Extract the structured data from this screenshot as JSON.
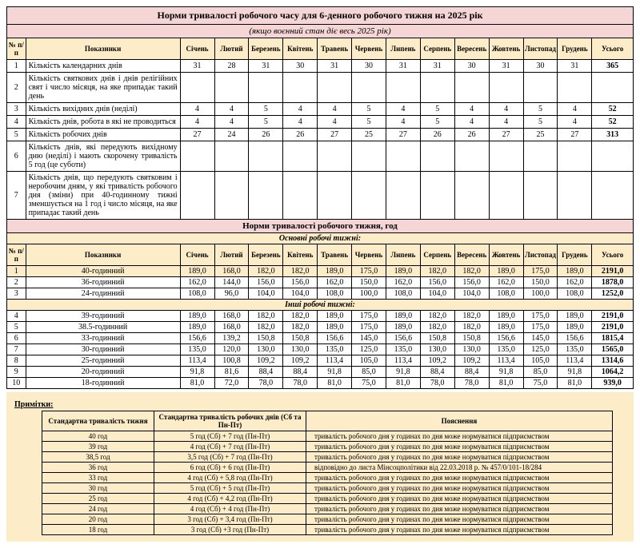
{
  "title": "Норми тривалості робочого часу для 6-денного робочого тижня на 2025 рік",
  "subtitle": "(якщо воєнний стан діє весь 2025 рік)",
  "headers": {
    "num": "№ п/п",
    "ind": "Показники",
    "months": [
      "Січень",
      "Лютий",
      "Березень",
      "Квітень",
      "Травень",
      "Червень",
      "Липень",
      "Серпень",
      "Вересень",
      "Жовтень",
      "Листопад",
      "Грудень"
    ],
    "total": "Усього"
  },
  "rows1": [
    {
      "n": "1",
      "label": "Кількість календарних днів",
      "v": [
        "31",
        "28",
        "31",
        "30",
        "31",
        "30",
        "31",
        "31",
        "30",
        "31",
        "30",
        "31"
      ],
      "t": "365"
    },
    {
      "n": "2",
      "label": "Кількість святкових днів і днів релігійних свят і число місяця, на яке припадає такий день",
      "v": [
        "",
        "",
        "",
        "",
        "",
        "",
        "",
        "",
        "",
        "",
        "",
        ""
      ],
      "t": ""
    },
    {
      "n": "3",
      "label": "Кількість вихідних днів (неділі)",
      "v": [
        "4",
        "4",
        "5",
        "4",
        "4",
        "5",
        "4",
        "5",
        "4",
        "4",
        "5",
        "4"
      ],
      "t": "52"
    },
    {
      "n": "4",
      "label": "Кількість днів, робота в які не проводиться",
      "v": [
        "4",
        "4",
        "5",
        "4",
        "4",
        "5",
        "4",
        "5",
        "4",
        "4",
        "5",
        "4"
      ],
      "t": "52"
    },
    {
      "n": "5",
      "label": "Кількість робочих днів",
      "v": [
        "27",
        "24",
        "26",
        "26",
        "27",
        "25",
        "27",
        "26",
        "26",
        "27",
        "25",
        "27"
      ],
      "t": "313"
    },
    {
      "n": "6",
      "label": "Кількість днів, які передують вихідному дню (неділі) і мають скорочену тривалість 5 год (це суботи)",
      "v": [
        "",
        "",
        "",
        "",
        "",
        "",
        "",
        "",
        "",
        "",
        "",
        ""
      ],
      "t": ""
    },
    {
      "n": "7",
      "label": "Кількість днів, що передують святковим і неробочим дням, у які тривалість робочого дня (зміни) при 40-годинному тижні зменшується на 1 год і число місяця, на яке припадає такий день",
      "v": [
        "",
        "",
        "",
        "",
        "",
        "",
        "",
        "",
        "",
        "",
        "",
        ""
      ],
      "t": ""
    }
  ],
  "section2_title": "Норми тривалості робочого тижня, год",
  "sub_a": "Основні робочі тижні:",
  "sub_b": "Інші робочі тижні:",
  "rows2a": [
    {
      "n": "1",
      "label": "40-годинний",
      "v": [
        "189,0",
        "168,0",
        "182,0",
        "182,0",
        "189,0",
        "175,0",
        "189,0",
        "182,0",
        "182,0",
        "189,0",
        "175,0",
        "189,0"
      ],
      "t": "2191,0",
      "hl": true
    },
    {
      "n": "2",
      "label": "36-годинний",
      "v": [
        "162,0",
        "144,0",
        "156,0",
        "156,0",
        "162,0",
        "150,0",
        "162,0",
        "156,0",
        "156,0",
        "162,0",
        "150,0",
        "162,0"
      ],
      "t": "1878,0"
    },
    {
      "n": "3",
      "label": "24-годинний",
      "v": [
        "108,0",
        "96,0",
        "104,0",
        "104,0",
        "108,0",
        "100,0",
        "108,0",
        "104,0",
        "104,0",
        "108,0",
        "100,0",
        "108,0"
      ],
      "t": "1252,0"
    }
  ],
  "rows2b": [
    {
      "n": "4",
      "label": "39-годинний",
      "v": [
        "189,0",
        "168,0",
        "182,0",
        "182,0",
        "189,0",
        "175,0",
        "189,0",
        "182,0",
        "182,0",
        "189,0",
        "175,0",
        "189,0"
      ],
      "t": "2191,0"
    },
    {
      "n": "5",
      "label": "38.5-годинний",
      "v": [
        "189,0",
        "168,0",
        "182,0",
        "182,0",
        "189,0",
        "175,0",
        "189,0",
        "182,0",
        "182,0",
        "189,0",
        "175,0",
        "189,0"
      ],
      "t": "2191,0"
    },
    {
      "n": "6",
      "label": "33-годинний",
      "v": [
        "156,6",
        "139,2",
        "150,8",
        "150,8",
        "156,6",
        "145,0",
        "156,6",
        "150,8",
        "150,8",
        "156,6",
        "145,0",
        "156,6"
      ],
      "t": "1815,4"
    },
    {
      "n": "7",
      "label": "30-годинний",
      "v": [
        "135,0",
        "120,0",
        "130,0",
        "130,0",
        "135,0",
        "125,0",
        "135,0",
        "130,0",
        "130,0",
        "135,0",
        "125,0",
        "135,0"
      ],
      "t": "1565,0"
    },
    {
      "n": "8",
      "label": "25-годинний",
      "v": [
        "113,4",
        "100,8",
        "109,2",
        "109,2",
        "113,4",
        "105,0",
        "113,4",
        "109,2",
        "109,2",
        "113,4",
        "105,0",
        "113,4"
      ],
      "t": "1314,6"
    },
    {
      "n": "9",
      "label": "20-годинний",
      "v": [
        "91,8",
        "81,6",
        "88,4",
        "88,4",
        "91,8",
        "85,0",
        "91,8",
        "88,4",
        "88,4",
        "91,8",
        "85,0",
        "91,8"
      ],
      "t": "1064,2"
    },
    {
      "n": "10",
      "label": "18-годинний",
      "v": [
        "81,0",
        "72,0",
        "78,0",
        "78,0",
        "81,0",
        "75,0",
        "81,0",
        "78,0",
        "78,0",
        "81,0",
        "75,0",
        "81,0"
      ],
      "t": "939,0"
    }
  ],
  "notes_label": "Примітки:",
  "notes_headers": [
    "Стандартна тривалість тижня",
    "Стандартна тривалість робочих днів (Сб та Пн-Пт)",
    "Пояснення"
  ],
  "notes_rows": [
    {
      "a": "40 год",
      "b": "5 год (Сб) + 7 год (Пн-Пт)",
      "c": "тривалість робочого дня у годинах по дня може нормуватися підприємством"
    },
    {
      "a": "39 год",
      "b": "4 год (Сб) + 7 год (Пн-Пт)",
      "c": "тривалість робочого дня у годинах по дня може нормуватися підприємством"
    },
    {
      "a": "38,5 год",
      "b": "3,5 год (Сб) + 7 год (Пн-Пт)",
      "c": "тривалість робочого дня у годинах по дня може нормуватися підприємством"
    },
    {
      "a": "36 год",
      "b": "6 год (Сб) + 6 год (Пн-Пт)",
      "c": "відповідно до листа Мінсоцполітики від 22.03.2018 р. № 457/0/101-18/284"
    },
    {
      "a": "33 год",
      "b": "4 год (Сб) + 5,8 год (Пн-Пт)",
      "c": "тривалість робочого дня у годинах по дня може нормуватися підприємством"
    },
    {
      "a": "30 год",
      "b": "5 год (Сб) + 5 год (Пн-Пт)",
      "c": "тривалість робочого дня у годинах по дня може нормуватися підприємством"
    },
    {
      "a": "25 год",
      "b": "4 год (Сб) + 4,2 год (Пн-Пт)",
      "c": "тривалість робочого дня у годинах по дня може нормуватися підприємством"
    },
    {
      "a": "24 год",
      "b": "4 год (Сб) + 4 год (Пн-Пт)",
      "c": "тривалість робочого дня у годинах по дня може нормуватися підприємством"
    },
    {
      "a": "20 год",
      "b": "3 год (Сб) + 3,4 год (Пн-Пт)",
      "c": "тривалість робочого дня у годинах по дня може нормуватися підприємством"
    },
    {
      "a": "18 год",
      "b": "3 год (Сб) +3 год (Пн-Пт)",
      "c": "тривалість робочого дня у годинах по дня може нормуватися підприємством"
    }
  ]
}
